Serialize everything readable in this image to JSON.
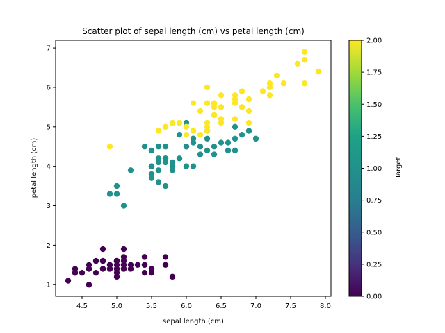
{
  "chart_data": {
    "type": "scatter",
    "title": "Scatter plot of sepal length (cm) vs petal length (cm)",
    "xlabel": "sepal length (cm)",
    "ylabel": "petal length (cm)",
    "xlim": [
      4.12,
      8.08
    ],
    "ylim": [
      0.705,
      7.195
    ],
    "x_ticks": [
      4.5,
      5.0,
      5.5,
      6.0,
      6.5,
      7.0,
      7.5,
      8.0
    ],
    "x_tick_labels": [
      "4.5",
      "5.0",
      "5.5",
      "6.0",
      "6.5",
      "7.0",
      "7.5",
      "8.0"
    ],
    "y_ticks": [
      1,
      2,
      3,
      4,
      5,
      6,
      7
    ],
    "y_tick_labels": [
      "1",
      "2",
      "3",
      "4",
      "5",
      "6",
      "7"
    ],
    "grid": false,
    "colorbar": {
      "label": "Target",
      "colormap": "viridis",
      "range": [
        0.0,
        2.0
      ],
      "ticks": [
        0.0,
        0.25,
        0.5,
        0.75,
        1.0,
        1.25,
        1.5,
        1.75,
        2.0
      ],
      "tick_labels": [
        "0.00",
        "0.25",
        "0.50",
        "0.75",
        "1.00",
        "1.25",
        "1.50",
        "1.75",
        "2.00"
      ]
    },
    "colors": {
      "0": "#440154",
      "1": "#21918c",
      "2": "#fde725"
    },
    "points": [
      [
        5.1,
        1.4,
        0
      ],
      [
        4.9,
        1.4,
        0
      ],
      [
        4.7,
        1.3,
        0
      ],
      [
        4.6,
        1.5,
        0
      ],
      [
        5.0,
        1.4,
        0
      ],
      [
        5.4,
        1.7,
        0
      ],
      [
        4.6,
        1.4,
        0
      ],
      [
        5.0,
        1.5,
        0
      ],
      [
        4.4,
        1.4,
        0
      ],
      [
        4.9,
        1.5,
        0
      ],
      [
        5.4,
        1.5,
        0
      ],
      [
        4.8,
        1.6,
        0
      ],
      [
        4.8,
        1.4,
        0
      ],
      [
        4.3,
        1.1,
        0
      ],
      [
        5.8,
        1.2,
        0
      ],
      [
        5.7,
        1.5,
        0
      ],
      [
        5.4,
        1.3,
        0
      ],
      [
        5.1,
        1.4,
        0
      ],
      [
        5.7,
        1.7,
        0
      ],
      [
        5.1,
        1.5,
        0
      ],
      [
        5.4,
        1.7,
        0
      ],
      [
        5.1,
        1.5,
        0
      ],
      [
        4.6,
        1.0,
        0
      ],
      [
        5.1,
        1.7,
        0
      ],
      [
        4.8,
        1.9,
        0
      ],
      [
        5.0,
        1.6,
        0
      ],
      [
        5.0,
        1.6,
        0
      ],
      [
        5.2,
        1.5,
        0
      ],
      [
        5.2,
        1.4,
        0
      ],
      [
        4.7,
        1.6,
        0
      ],
      [
        4.8,
        1.6,
        0
      ],
      [
        5.4,
        1.5,
        0
      ],
      [
        5.2,
        1.5,
        0
      ],
      [
        5.5,
        1.4,
        0
      ],
      [
        4.9,
        1.5,
        0
      ],
      [
        5.0,
        1.2,
        0
      ],
      [
        5.5,
        1.3,
        0
      ],
      [
        4.9,
        1.4,
        0
      ],
      [
        4.4,
        1.3,
        0
      ],
      [
        5.1,
        1.5,
        0
      ],
      [
        5.0,
        1.3,
        0
      ],
      [
        4.5,
        1.3,
        0
      ],
      [
        4.4,
        1.3,
        0
      ],
      [
        5.0,
        1.6,
        0
      ],
      [
        5.1,
        1.9,
        0
      ],
      [
        4.8,
        1.4,
        0
      ],
      [
        5.1,
        1.6,
        0
      ],
      [
        4.6,
        1.4,
        0
      ],
      [
        5.3,
        1.5,
        0
      ],
      [
        5.0,
        1.4,
        0
      ],
      [
        7.0,
        4.7,
        1
      ],
      [
        6.4,
        4.5,
        1
      ],
      [
        6.9,
        4.9,
        1
      ],
      [
        5.5,
        4.0,
        1
      ],
      [
        6.5,
        4.6,
        1
      ],
      [
        5.7,
        4.5,
        1
      ],
      [
        6.3,
        4.7,
        1
      ],
      [
        4.9,
        3.3,
        1
      ],
      [
        6.6,
        4.6,
        1
      ],
      [
        5.2,
        3.9,
        1
      ],
      [
        5.0,
        3.5,
        1
      ],
      [
        5.9,
        4.2,
        1
      ],
      [
        6.0,
        4.0,
        1
      ],
      [
        6.1,
        4.7,
        1
      ],
      [
        5.6,
        3.6,
        1
      ],
      [
        6.7,
        4.4,
        1
      ],
      [
        5.6,
        4.5,
        1
      ],
      [
        5.8,
        4.1,
        1
      ],
      [
        6.2,
        4.5,
        1
      ],
      [
        5.6,
        3.9,
        1
      ],
      [
        5.9,
        4.8,
        1
      ],
      [
        6.1,
        4.0,
        1
      ],
      [
        6.3,
        4.9,
        1
      ],
      [
        6.1,
        4.7,
        1
      ],
      [
        6.4,
        4.3,
        1
      ],
      [
        6.6,
        4.4,
        1
      ],
      [
        6.8,
        4.8,
        1
      ],
      [
        6.7,
        5.0,
        1
      ],
      [
        6.0,
        4.5,
        1
      ],
      [
        5.7,
        3.5,
        1
      ],
      [
        5.5,
        3.8,
        1
      ],
      [
        5.5,
        3.7,
        1
      ],
      [
        5.8,
        3.9,
        1
      ],
      [
        6.0,
        5.1,
        1
      ],
      [
        5.4,
        4.5,
        1
      ],
      [
        6.0,
        4.5,
        1
      ],
      [
        6.7,
        4.7,
        1
      ],
      [
        6.3,
        4.4,
        1
      ],
      [
        5.6,
        4.1,
        1
      ],
      [
        5.5,
        4.0,
        1
      ],
      [
        5.5,
        4.4,
        1
      ],
      [
        6.1,
        4.6,
        1
      ],
      [
        5.8,
        4.0,
        1
      ],
      [
        5.0,
        3.3,
        1
      ],
      [
        5.6,
        4.2,
        1
      ],
      [
        5.7,
        4.2,
        1
      ],
      [
        5.7,
        4.2,
        1
      ],
      [
        6.2,
        4.3,
        1
      ],
      [
        5.1,
        3.0,
        1
      ],
      [
        5.7,
        4.1,
        1
      ],
      [
        6.3,
        6.0,
        2
      ],
      [
        5.8,
        5.1,
        2
      ],
      [
        7.1,
        5.9,
        2
      ],
      [
        6.3,
        5.6,
        2
      ],
      [
        6.5,
        5.8,
        2
      ],
      [
        7.6,
        6.6,
        2
      ],
      [
        4.9,
        4.5,
        2
      ],
      [
        7.3,
        6.3,
        2
      ],
      [
        6.7,
        5.8,
        2
      ],
      [
        7.2,
        6.1,
        2
      ],
      [
        6.5,
        5.1,
        2
      ],
      [
        6.4,
        5.3,
        2
      ],
      [
        6.8,
        5.5,
        2
      ],
      [
        5.7,
        5.0,
        2
      ],
      [
        5.8,
        5.1,
        2
      ],
      [
        6.4,
        5.3,
        2
      ],
      [
        6.5,
        5.5,
        2
      ],
      [
        7.7,
        6.7,
        2
      ],
      [
        7.7,
        6.9,
        2
      ],
      [
        6.0,
        5.0,
        2
      ],
      [
        6.9,
        5.7,
        2
      ],
      [
        5.6,
        4.9,
        2
      ],
      [
        7.7,
        6.7,
        2
      ],
      [
        6.3,
        4.9,
        2
      ],
      [
        6.7,
        5.7,
        2
      ],
      [
        7.2,
        6.0,
        2
      ],
      [
        6.2,
        4.8,
        2
      ],
      [
        6.1,
        4.9,
        2
      ],
      [
        6.4,
        5.6,
        2
      ],
      [
        7.2,
        5.8,
        2
      ],
      [
        7.4,
        6.1,
        2
      ],
      [
        7.9,
        6.4,
        2
      ],
      [
        6.4,
        5.6,
        2
      ],
      [
        6.3,
        5.1,
        2
      ],
      [
        6.1,
        5.6,
        2
      ],
      [
        7.7,
        6.1,
        2
      ],
      [
        6.3,
        5.6,
        2
      ],
      [
        6.4,
        5.5,
        2
      ],
      [
        6.0,
        4.8,
        2
      ],
      [
        6.9,
        5.4,
        2
      ],
      [
        6.7,
        5.6,
        2
      ],
      [
        6.9,
        5.1,
        2
      ],
      [
        5.8,
        5.1,
        2
      ],
      [
        6.8,
        5.9,
        2
      ],
      [
        6.7,
        5.7,
        2
      ],
      [
        6.7,
        5.2,
        2
      ],
      [
        6.3,
        5.0,
        2
      ],
      [
        6.5,
        5.2,
        2
      ],
      [
        6.2,
        5.4,
        2
      ],
      [
        5.9,
        5.1,
        2
      ]
    ]
  }
}
